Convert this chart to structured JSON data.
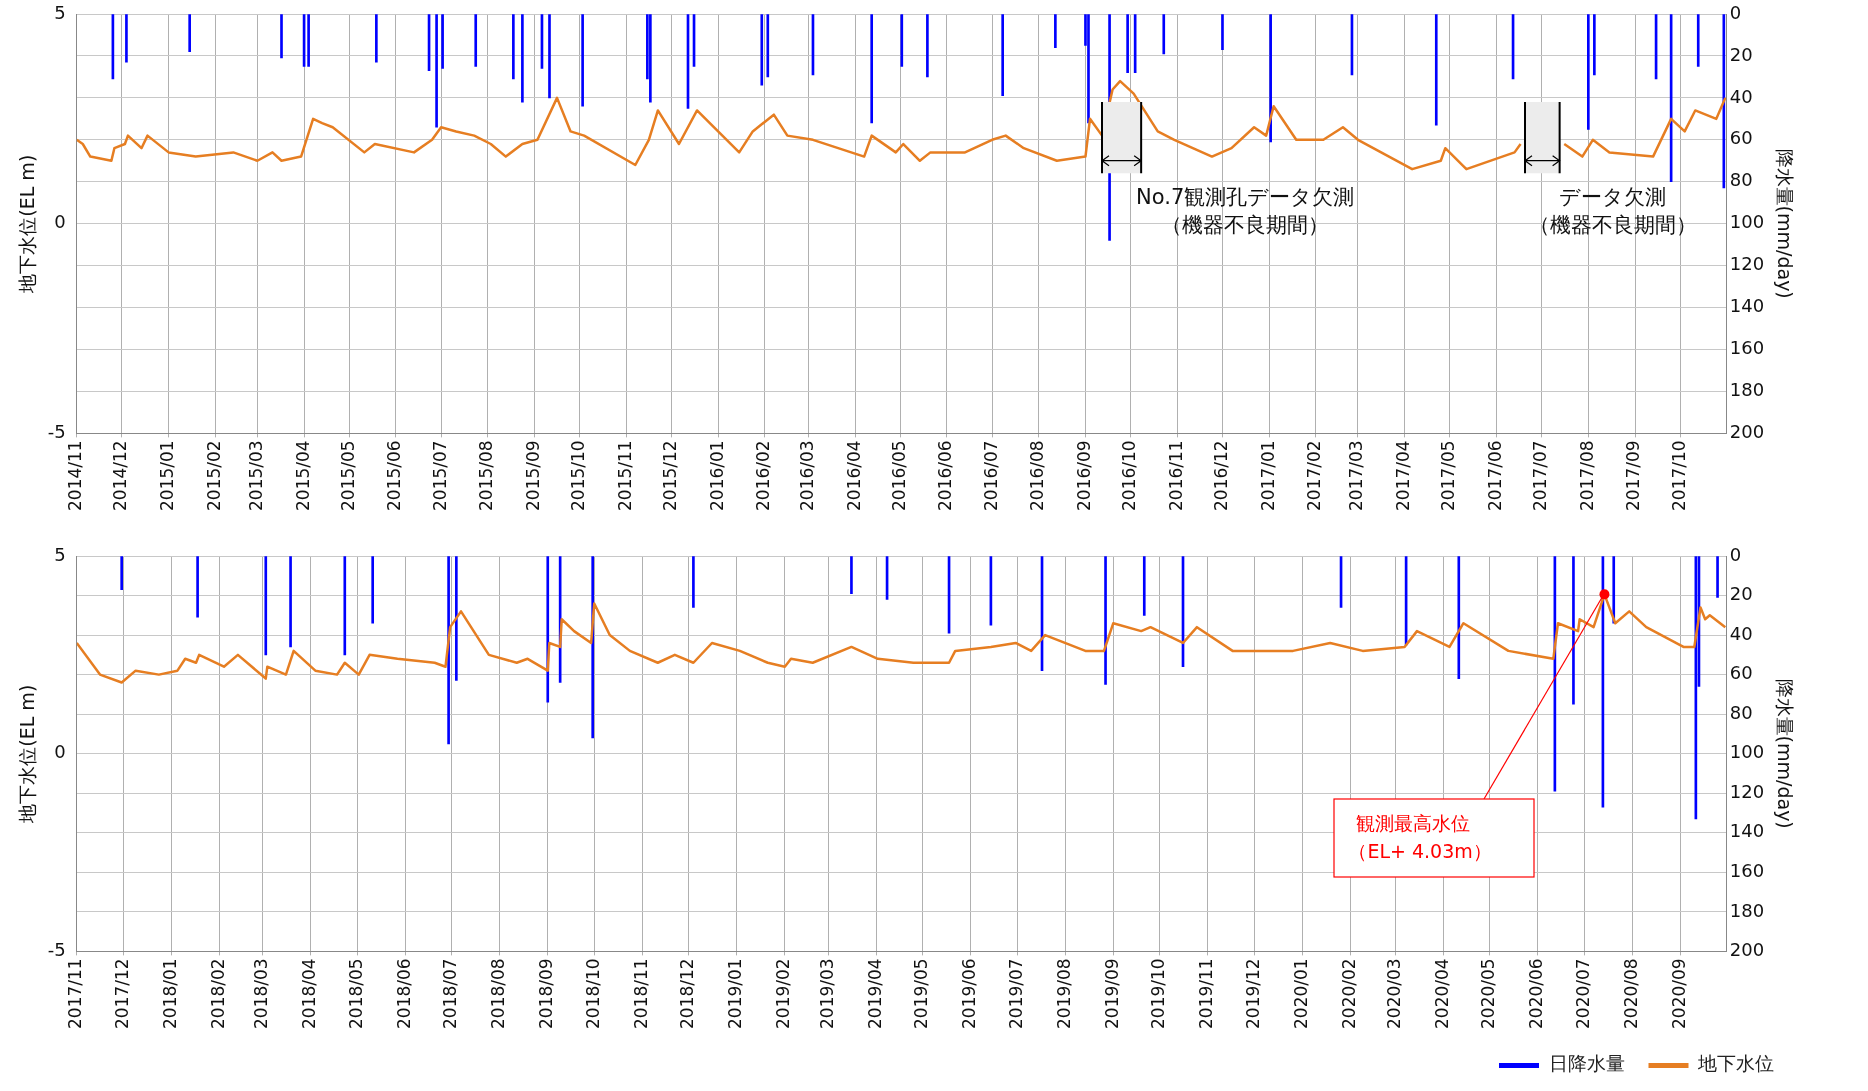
{
  "chart_data": [
    {
      "type": "line",
      "ylabel": "地下水位(EL m)",
      "y2label": "降水量(mm/day)",
      "xlim": [
        "2014-11-01",
        "2017-11-01"
      ],
      "ylim": [
        -5,
        5
      ],
      "yticks": [
        -5,
        0,
        5
      ],
      "y2lim": [
        200,
        0
      ],
      "y2ticks": [
        0,
        20,
        40,
        60,
        80,
        100,
        120,
        140,
        160,
        180,
        200
      ],
      "grid": true,
      "legend": false,
      "xticks": [
        {
          "value": "2014-11",
          "label": "2014/11"
        },
        {
          "value": "2014-12",
          "label": "2014/12"
        },
        {
          "value": "2015-01",
          "label": "2015/01"
        },
        {
          "value": "2015-02",
          "label": "2015/02"
        },
        {
          "value": "2015-03",
          "label": "2015/03"
        },
        {
          "value": "2015-04",
          "label": "2015/04"
        },
        {
          "value": "2015-05",
          "label": "2015/05"
        },
        {
          "value": "2015-06",
          "label": "2015/06"
        },
        {
          "value": "2015-07",
          "label": "2015/07"
        },
        {
          "value": "2015-08",
          "label": "2015/08"
        },
        {
          "value": "2015-09",
          "label": "2015/09"
        },
        {
          "value": "2015-10",
          "label": "2015/10"
        },
        {
          "value": "2015-11",
          "label": "2015/11"
        },
        {
          "value": "2015-12",
          "label": "2015/12"
        },
        {
          "value": "2016-01",
          "label": "2016/01"
        },
        {
          "value": "2016-02",
          "label": "2016/02"
        },
        {
          "value": "2016-03",
          "label": "2016/03"
        },
        {
          "value": "2016-04",
          "label": "2016/04"
        },
        {
          "value": "2016-05",
          "label": "2016/05"
        },
        {
          "value": "2016-06",
          "label": "2016/06"
        },
        {
          "value": "2016-07",
          "label": "2016/07"
        },
        {
          "value": "2016-08",
          "label": "2016/08"
        },
        {
          "value": "2016-09",
          "label": "2016/09"
        },
        {
          "value": "2016-10",
          "label": "2016/10"
        },
        {
          "value": "2016-11",
          "label": "2016/11"
        },
        {
          "value": "2016-12",
          "label": "2016/12"
        },
        {
          "value": "2017-01",
          "label": "2017/01"
        },
        {
          "value": "2017-02",
          "label": "2017/02"
        },
        {
          "value": "2017-03",
          "label": "2017/03"
        },
        {
          "value": "2017-04",
          "label": "2017/04"
        },
        {
          "value": "2017-05",
          "label": "2017/05"
        },
        {
          "value": "2017-06",
          "label": "2017/06"
        },
        {
          "value": "2017-07",
          "label": "2017/07"
        },
        {
          "value": "2017-08",
          "label": "2017/08"
        },
        {
          "value": "2017-09",
          "label": "2017/09"
        },
        {
          "value": "2017-10",
          "label": "2017/10"
        }
      ],
      "series": [
        {
          "type": "bar",
          "axis": "y2",
          "color": "#0000ff",
          "x": [
            "2014-11-25",
            "2014-12-04",
            "2015-01-15",
            "2015-03-17",
            "2015-04-01",
            "2015-04-04",
            "2015-05-19",
            "2015-06-23",
            "2015-06-28",
            "2015-07-02",
            "2015-07-24",
            "2015-08-18",
            "2015-08-24",
            "2015-09-06",
            "2015-09-11",
            "2015-10-03",
            "2015-11-15",
            "2015-11-17",
            "2015-12-12",
            "2015-12-16",
            "2016-01-30",
            "2016-02-03",
            "2016-03-04",
            "2016-04-12",
            "2016-05-02",
            "2016-05-19",
            "2016-07-08",
            "2016-08-12",
            "2016-09-01",
            "2016-09-03",
            "2016-09-17",
            "2016-09-29",
            "2016-10-04",
            "2016-10-23",
            "2016-12-01",
            "2017-01-02",
            "2017-02-25",
            "2017-04-22",
            "2017-06-12",
            "2017-08-01",
            "2017-08-05",
            "2017-09-15",
            "2017-09-25",
            "2017-10-13",
            "2017-10-30"
          ],
          "values": [
            31,
            23,
            18,
            21,
            25,
            25,
            23,
            27,
            54,
            26,
            25,
            31,
            42,
            26,
            40,
            44,
            31,
            42,
            45,
            25,
            34,
            30,
            29,
            52,
            25,
            30,
            39,
            16,
            15,
            52,
            108,
            28,
            28,
            19,
            17,
            61,
            29,
            53,
            31,
            55,
            29,
            31,
            80,
            25,
            83
          ]
        },
        {
          "type": "line",
          "color": "#e67e22",
          "x": [
            "2014-11-01",
            "2014-11-05",
            "2014-11-10",
            "2014-11-24",
            "2014-11-26",
            "2014-12-03",
            "2014-12-05",
            "2014-12-14",
            "2014-12-18",
            "2015-01-01",
            "2015-01-19",
            "2015-02-13",
            "2015-03-01",
            "2015-03-11",
            "2015-03-17",
            "2015-03-30",
            "2015-04-07",
            "2015-04-13",
            "2015-04-20",
            "2015-05-11",
            "2015-05-18",
            "2015-06-13",
            "2015-06-25",
            "2015-07-01",
            "2015-07-11",
            "2015-07-23",
            "2015-08-03",
            "2015-08-13",
            "2015-08-24",
            "2015-09-03",
            "2015-09-16",
            "2015-09-25",
            "2015-10-04",
            "2015-11-07",
            "2015-11-16",
            "2015-11-22",
            "2015-12-06",
            "2015-12-18",
            "2016-01-15",
            "2016-01-24",
            "2016-02-07",
            "2016-02-16",
            "2016-03-04",
            "2016-04-07",
            "2016-04-12",
            "2016-04-28",
            "2016-05-03",
            "2016-05-14",
            "2016-05-21",
            "2016-06-13",
            "2016-07-01",
            "2016-07-10",
            "2016-07-22",
            "2016-08-13",
            "2016-09-01",
            "2016-09-04",
            "2016-09-12",
            "2016-09-19",
            "2016-09-24",
            "2016-10-03",
            "2016-10-19",
            "2016-10-30",
            "2016-11-24",
            "2016-12-07",
            "2016-12-22",
            "2016-12-30",
            "2017-01-04",
            "2017-01-19",
            "2017-02-06",
            "2017-02-19",
            "2017-03-01",
            "2017-04-06",
            "2017-04-25",
            "2017-04-28",
            "2017-05-12",
            "2017-06-13",
            "2017-06-17",
            "2017-06-28",
            "2017-07-16",
            "2017-07-28",
            "2017-08-04",
            "2017-08-15",
            "2017-09-13",
            "2017-09-25",
            "2017-10-04",
            "2017-10-11",
            "2017-10-25",
            "2017-10-31"
          ],
          "values": [
            2.0,
            1.9,
            1.6,
            1.5,
            1.8,
            1.9,
            2.1,
            1.8,
            2.1,
            1.7,
            1.6,
            1.7,
            1.5,
            1.7,
            1.5,
            1.6,
            2.5,
            2.4,
            2.3,
            1.7,
            1.9,
            1.7,
            2.0,
            2.3,
            2.2,
            2.1,
            1.9,
            1.6,
            1.9,
            2.0,
            3.0,
            2.2,
            2.1,
            1.4,
            2.0,
            2.7,
            1.9,
            2.7,
            1.7,
            2.2,
            2.6,
            2.1,
            2.0,
            1.6,
            2.1,
            1.7,
            1.9,
            1.5,
            1.7,
            1.7,
            2.0,
            2.1,
            1.8,
            1.5,
            1.6,
            2.5,
            2.1,
            3.2,
            3.4,
            3.1,
            2.2,
            2.0,
            1.6,
            1.8,
            2.3,
            2.1,
            2.8,
            2.0,
            2.0,
            2.3,
            2.0,
            1.3,
            1.5,
            1.8,
            1.3,
            1.7,
            1.9,
            null,
            1.9,
            1.6,
            2.0,
            1.7,
            1.6,
            2.5,
            2.2,
            2.7,
            2.5,
            3.0
          ]
        }
      ],
      "bands": [
        {
          "axis": "x",
          "from": "2016-09-12",
          "to": "2016-10-08",
          "label": "No.7観測孔データ欠測（機器不良期間）",
          "color": "#ececec"
        },
        {
          "axis": "x",
          "from": "2017-06-20",
          "to": "2017-07-13",
          "label": "データ欠測（機器不良期間）",
          "color": "#ececec"
        }
      ]
    },
    {
      "type": "line",
      "ylabel": "地下水位(EL m)",
      "y2label": "降水量(mm/day)",
      "xlim": [
        "2017-11-01",
        "2020-10-01"
      ],
      "ylim": [
        -5,
        5
      ],
      "yticks": [
        -5,
        0,
        5
      ],
      "y2lim": [
        200,
        0
      ],
      "y2ticks": [
        0,
        20,
        40,
        60,
        80,
        100,
        120,
        140,
        160,
        180,
        200
      ],
      "grid": true,
      "legend": "bottom right",
      "xticks": [
        {
          "value": "2017-11",
          "label": "2017/11"
        },
        {
          "value": "2017-12",
          "label": "2017/12"
        },
        {
          "value": "2018-01",
          "label": "2018/01"
        },
        {
          "value": "2018-02",
          "label": "2018/02"
        },
        {
          "value": "2018-03",
          "label": "2018/03"
        },
        {
          "value": "2018-04",
          "label": "2018/04"
        },
        {
          "value": "2018-05",
          "label": "2018/05"
        },
        {
          "value": "2018-06",
          "label": "2018/06"
        },
        {
          "value": "2018-07",
          "label": "2018/07"
        },
        {
          "value": "2018-08",
          "label": "2018/08"
        },
        {
          "value": "2018-09",
          "label": "2018/09"
        },
        {
          "value": "2018-10",
          "label": "2018/10"
        },
        {
          "value": "2018-11",
          "label": "2018/11"
        },
        {
          "value": "2018-12",
          "label": "2018/12"
        },
        {
          "value": "2019-01",
          "label": "2019/01"
        },
        {
          "value": "2019-02",
          "label": "2019/02"
        },
        {
          "value": "2019-03",
          "label": "2019/03"
        },
        {
          "value": "2019-04",
          "label": "2019/04"
        },
        {
          "value": "2019-05",
          "label": "2019/05"
        },
        {
          "value": "2019-06",
          "label": "2019/06"
        },
        {
          "value": "2019-07",
          "label": "2019/07"
        },
        {
          "value": "2019-08",
          "label": "2019/08"
        },
        {
          "value": "2019-09",
          "label": "2019/09"
        },
        {
          "value": "2019-10",
          "label": "2019/10"
        },
        {
          "value": "2019-11",
          "label": "2019/11"
        },
        {
          "value": "2019-12",
          "label": "2019/12"
        },
        {
          "value": "2020-01",
          "label": "2020/01"
        },
        {
          "value": "2020-02",
          "label": "2020/02"
        },
        {
          "value": "2020-03",
          "label": "2020/03"
        },
        {
          "value": "2020-04",
          "label": "2020/04"
        },
        {
          "value": "2020-05",
          "label": "2020/05"
        },
        {
          "value": "2020-06",
          "label": "2020/06"
        },
        {
          "value": "2020-07",
          "label": "2020/07"
        },
        {
          "value": "2020-08",
          "label": "2020/08"
        },
        {
          "value": "2020-09",
          "label": "2020/09"
        }
      ],
      "series": [
        {
          "type": "bar",
          "axis": "y2",
          "name": "日降水量",
          "color": "#0000ff",
          "x": [
            "2017-11-30",
            "2018-01-18",
            "2018-03-03",
            "2018-03-19",
            "2018-04-23",
            "2018-05-11",
            "2018-06-29",
            "2018-07-04",
            "2018-09-01",
            "2018-09-09",
            "2018-09-30",
            "2018-12-04",
            "2019-03-16",
            "2019-04-08",
            "2019-05-18",
            "2019-06-14",
            "2019-07-17",
            "2019-08-27",
            "2019-09-21",
            "2019-10-16",
            "2020-01-26",
            "2020-03-08",
            "2020-04-11",
            "2020-06-12",
            "2020-06-24",
            "2020-07-13",
            "2020-07-20",
            "2020-09-11",
            "2020-09-13",
            "2020-09-25"
          ],
          "values": [
            17,
            31,
            50,
            46,
            50,
            34,
            95,
            63,
            74,
            64,
            92,
            26,
            19,
            22,
            39,
            35,
            58,
            65,
            30,
            56,
            26,
            45,
            62,
            119,
            75,
            127,
            34,
            133,
            66,
            21
          ]
        },
        {
          "type": "line",
          "name": "地下水位",
          "color": "#e67e22",
          "x": [
            "2017-11-01",
            "2017-11-16",
            "2017-11-30",
            "2017-12-09",
            "2017-12-24",
            "2018-01-05",
            "2018-01-10",
            "2018-01-17",
            "2018-01-19",
            "2018-02-04",
            "2018-02-13",
            "2018-03-03",
            "2018-03-04",
            "2018-03-16",
            "2018-03-21",
            "2018-04-04",
            "2018-04-18",
            "2018-04-23",
            "2018-05-02",
            "2018-05-09",
            "2018-05-27",
            "2018-06-20",
            "2018-06-27",
            "2018-06-30",
            "2018-07-07",
            "2018-07-25",
            "2018-08-12",
            "2018-08-19",
            "2018-09-01",
            "2018-09-02",
            "2018-09-09",
            "2018-09-10",
            "2018-09-18",
            "2018-09-29",
            "2018-10-01",
            "2018-10-11",
            "2018-10-24",
            "2018-11-11",
            "2018-11-22",
            "2018-12-04",
            "2018-12-16",
            "2019-01-03",
            "2019-01-21",
            "2019-02-01",
            "2019-02-05",
            "2019-02-19",
            "2019-03-16",
            "2019-04-02",
            "2019-04-25",
            "2019-05-18",
            "2019-05-22",
            "2019-06-14",
            "2019-06-30",
            "2019-07-10",
            "2019-07-19",
            "2019-08-14",
            "2019-08-26",
            "2019-09-01",
            "2019-09-19",
            "2019-09-25",
            "2019-10-16",
            "2019-10-25",
            "2019-11-17",
            "2019-12-26",
            "2020-01-19",
            "2020-02-09",
            "2020-03-07",
            "2020-03-15",
            "2020-04-05",
            "2020-04-14",
            "2020-05-13",
            "2020-06-11",
            "2020-06-14",
            "2020-06-27",
            "2020-06-28",
            "2020-07-07",
            "2020-07-14",
            "2020-07-21",
            "2020-07-30",
            "2020-08-10",
            "2020-09-03",
            "2020-09-10",
            "2020-09-14",
            "2020-09-17",
            "2020-09-20",
            "2020-09-30"
          ],
          "values": [
            2.8,
            2.0,
            1.8,
            2.1,
            2.0,
            2.1,
            2.4,
            2.3,
            2.5,
            2.2,
            2.5,
            1.9,
            2.2,
            2.0,
            2.6,
            2.1,
            2.0,
            2.3,
            2.0,
            2.5,
            2.4,
            2.3,
            2.2,
            3.2,
            3.6,
            2.5,
            2.3,
            2.4,
            2.1,
            2.8,
            2.7,
            3.4,
            3.1,
            2.8,
            3.8,
            3.0,
            2.6,
            2.3,
            2.5,
            2.3,
            2.8,
            2.6,
            2.3,
            2.2,
            2.4,
            2.3,
            2.7,
            2.4,
            2.3,
            2.3,
            2.6,
            2.7,
            2.8,
            2.6,
            3.0,
            2.6,
            2.6,
            3.3,
            3.1,
            3.2,
            2.8,
            3.2,
            2.6,
            2.6,
            2.8,
            2.6,
            2.7,
            3.1,
            2.7,
            3.3,
            2.6,
            2.4,
            3.3,
            3.1,
            3.4,
            3.2,
            4.03,
            3.3,
            3.6,
            3.2,
            2.7,
            2.7,
            3.7,
            3.4,
            3.5,
            3.2
          ]
        }
      ],
      "annotations": [
        {
          "text": "観測最高水位（EL+ 4.03m）",
          "x": "2020-07-14",
          "y": 4.03
        }
      ]
    }
  ]
}
